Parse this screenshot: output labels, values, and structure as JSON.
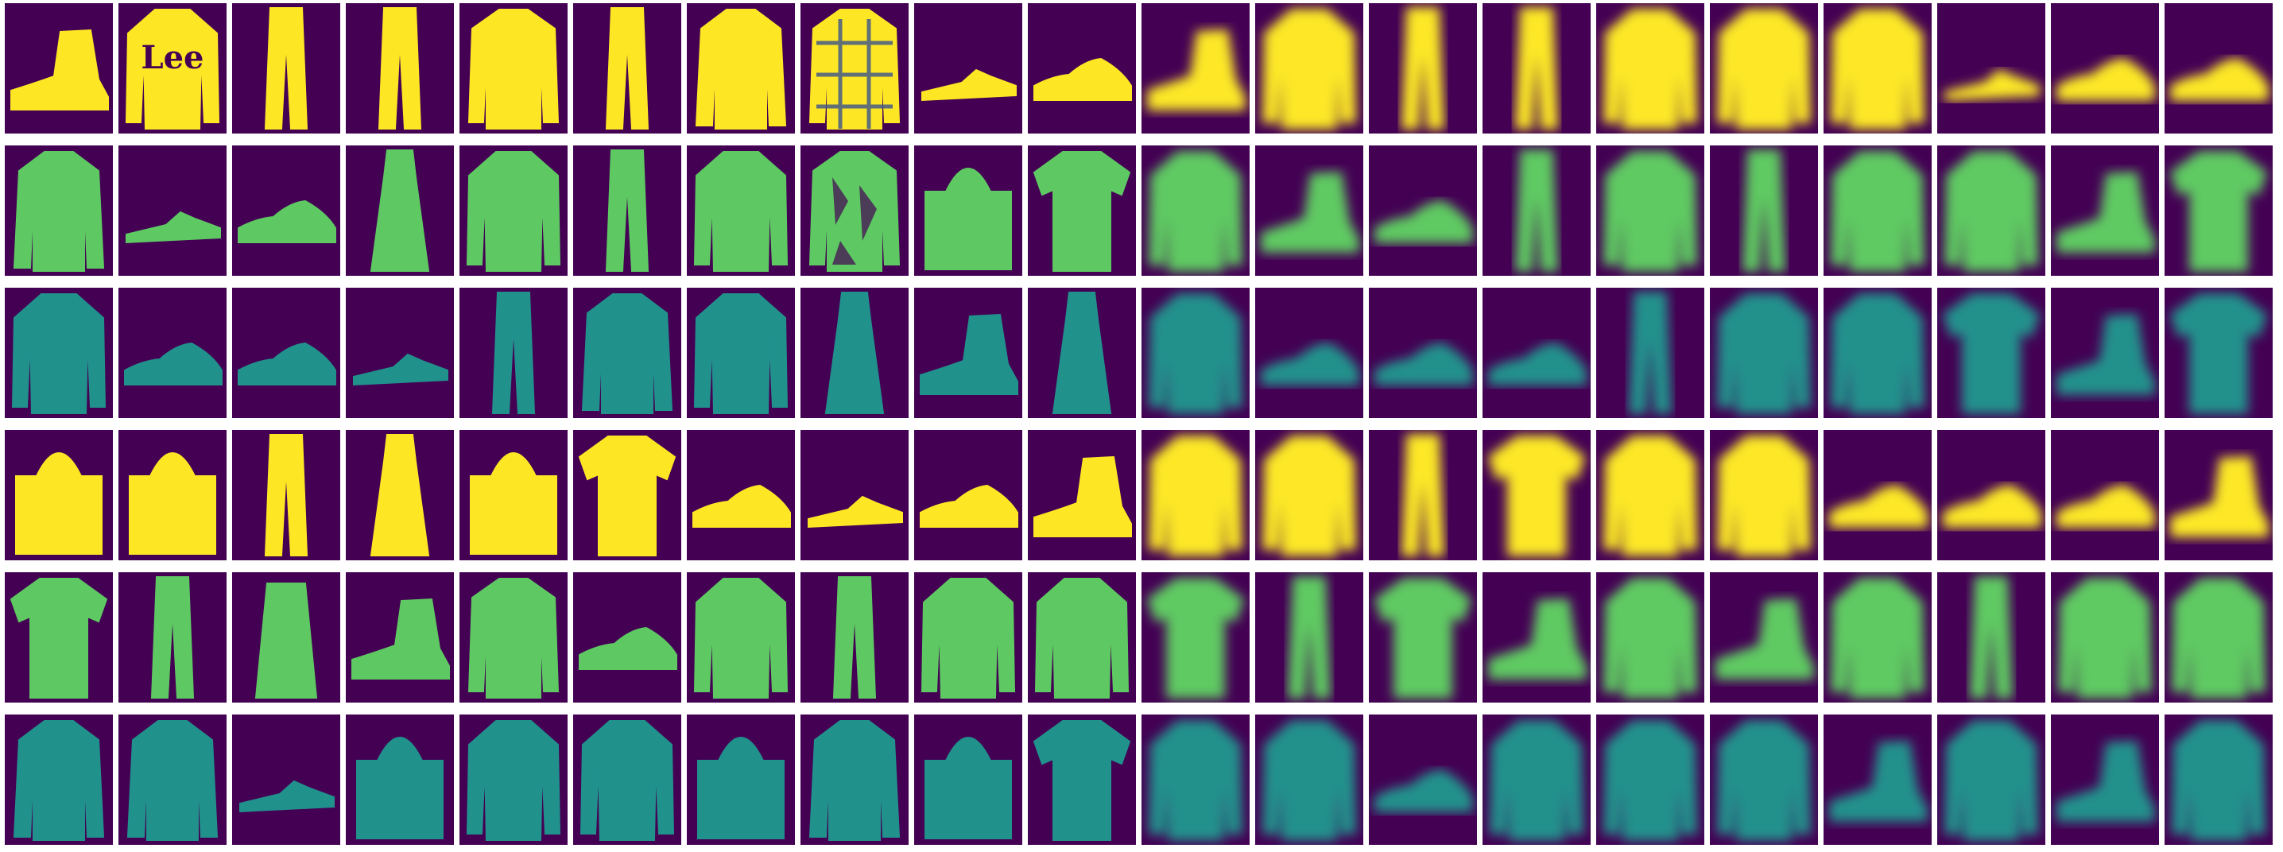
{
  "figure": {
    "description_free": true,
    "layout": {
      "rows": 6,
      "cols": 20,
      "originals_cols": 10,
      "reconstructions_cols": 10
    },
    "colormap": [
      "#440154",
      "#3b528b",
      "#21918c",
      "#5ec962",
      "#fde725"
    ],
    "text_on_image": {
      "row1_col2_logo": "Lee"
    },
    "grid": [
      [
        "boot",
        "sweater",
        "trouser",
        "trouser",
        "shirt",
        "trouser",
        "jacket",
        "plaid-shirt",
        "sandal",
        "sneaker",
        "blur-boot",
        "blur-sweater",
        "blur-trouser",
        "blur-trouser",
        "blur-sweater",
        "blur-sweater",
        "blur-sweater",
        "blur-sandal",
        "blur-sneaker",
        "blur-sneaker"
      ],
      [
        "jacket",
        "sandal",
        "sneaker",
        "dress",
        "sweater",
        "trouser",
        "sweater",
        "print-shirt",
        "bag",
        "tshirt",
        "blur-sweater",
        "blur-boot",
        "blur-sneaker",
        "blur-trouser",
        "blur-sweater",
        "blur-trouser",
        "blur-sweater",
        "blur-sweater",
        "blur-boot",
        "blur-tshirt"
      ],
      [
        "sweater",
        "sneaker",
        "sneaker",
        "sandal",
        "trouser",
        "cardigan",
        "sweater",
        "dress",
        "boot",
        "dress",
        "blur-sweater",
        "blur-sneaker",
        "blur-sneaker",
        "blur-sneaker",
        "blur-trouser",
        "blur-sweater",
        "blur-sweater",
        "blur-tshirt",
        "blur-boot",
        "blur-tshirt"
      ],
      [
        "bag",
        "bag",
        "trouser",
        "dress",
        "bag",
        "tshirt",
        "sneaker",
        "sandal",
        "sneaker",
        "boot",
        "blur-sweater",
        "blur-sweater",
        "blur-trouser",
        "blur-tshirt",
        "blur-sweater",
        "blur-sweater",
        "blur-sneaker",
        "blur-sneaker",
        "blur-sneaker",
        "blur-boot"
      ],
      [
        "tshirt",
        "trouser",
        "skirt",
        "boot",
        "shirt",
        "sneaker",
        "sweater",
        "trouser",
        "sweater",
        "sweater",
        "blur-tshirt",
        "blur-trouser",
        "blur-tshirt",
        "blur-boot",
        "blur-sweater",
        "blur-boot",
        "blur-sweater",
        "blur-trouser",
        "blur-sweater",
        "blur-sweater"
      ],
      [
        "jacket",
        "jacket",
        "sandal",
        "bag",
        "sweater",
        "sweater",
        "bag",
        "jacket",
        "bag",
        "tshirt",
        "blur-sweater",
        "blur-sweater",
        "blur-sneaker",
        "blur-sweater",
        "blur-sweater",
        "blur-sweater",
        "blur-boot",
        "blur-sweater",
        "blur-boot",
        "blur-sweater"
      ]
    ]
  }
}
